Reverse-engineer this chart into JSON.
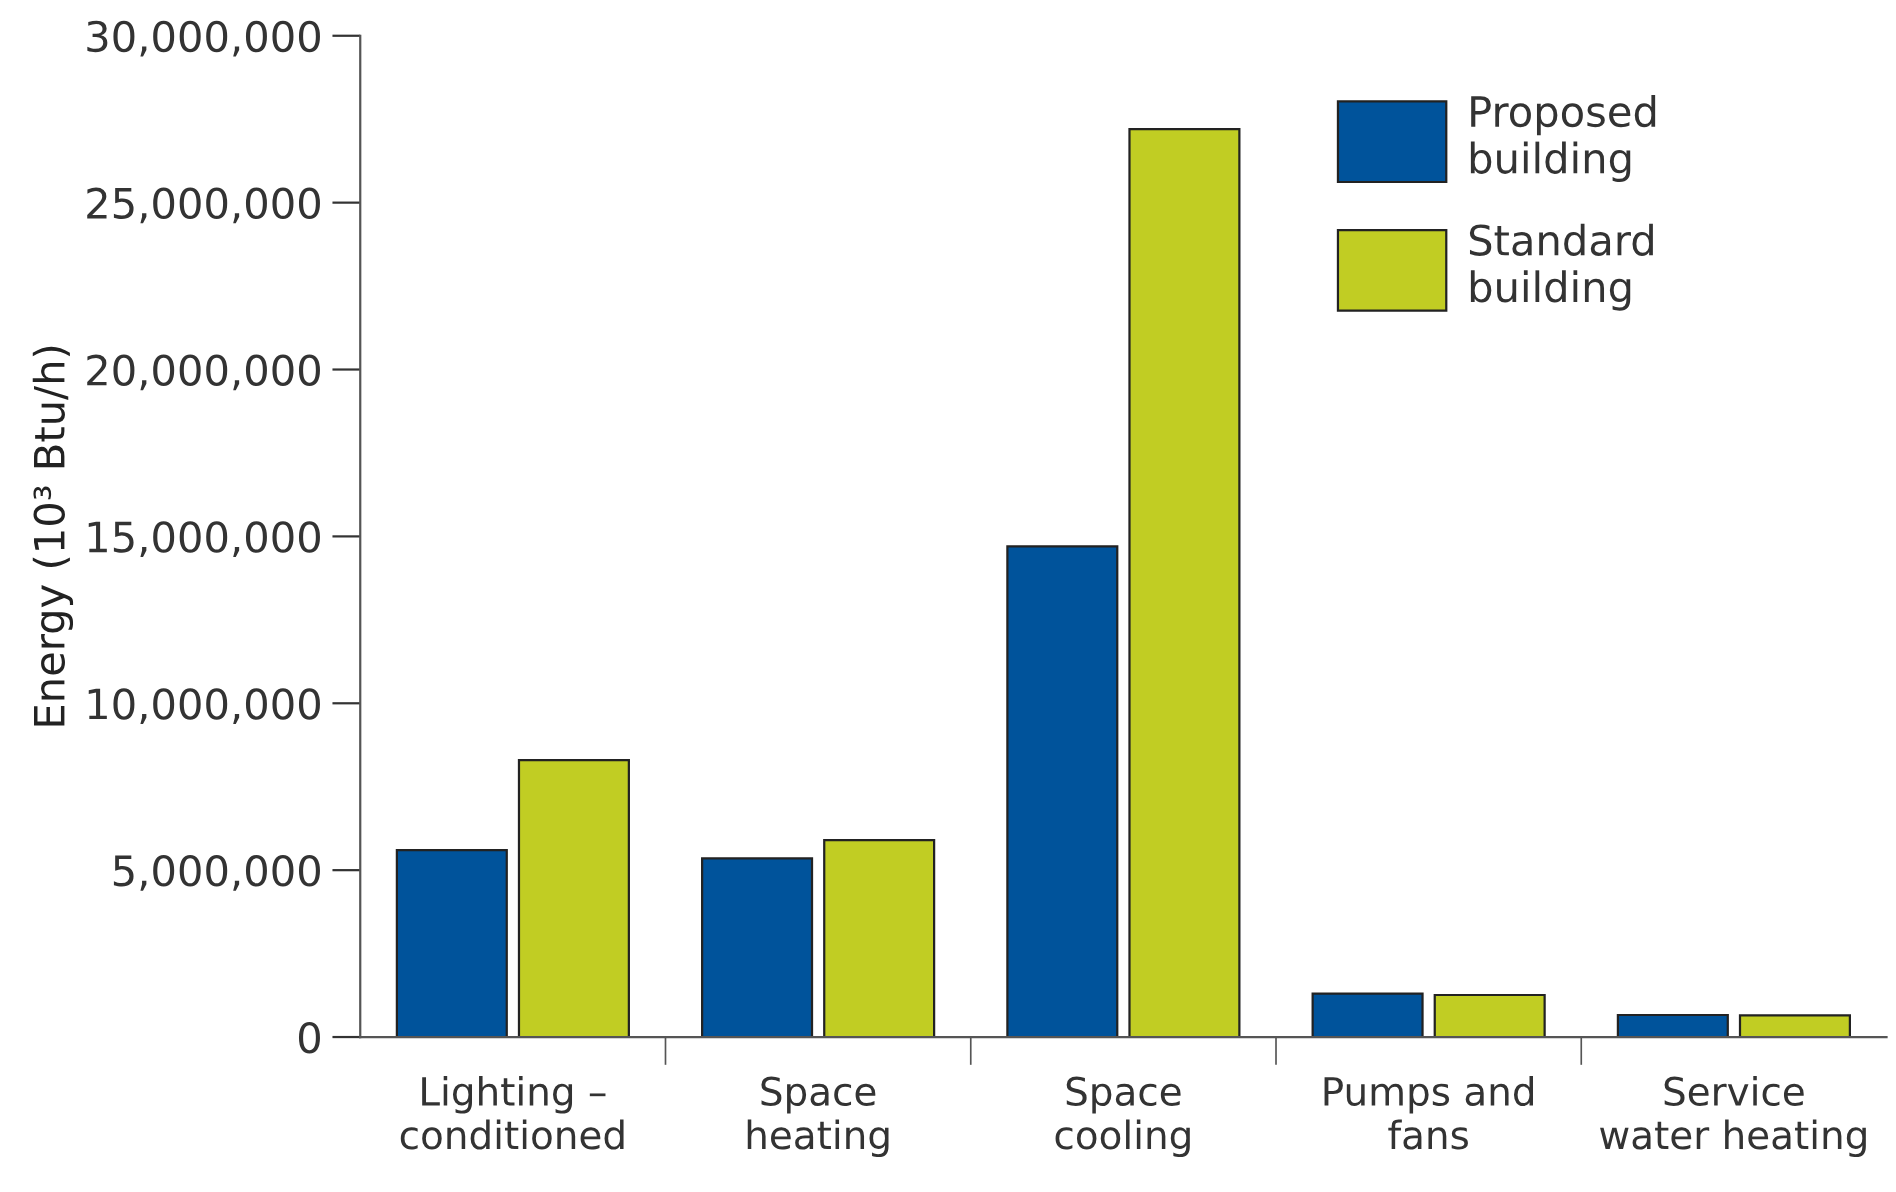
{
  "chart_data": {
    "type": "bar",
    "ylabel": "Energy (10³ Btu/h)",
    "categories": [
      "Lighting –\nconditioned",
      "Space\nheating",
      "Space\ncooling",
      "Pumps and\nfans",
      "Service\nwater heating"
    ],
    "series": [
      {
        "name": "Proposed\nbuilding",
        "color": "#00539b",
        "values": [
          5600000,
          5350000,
          14700000,
          1300000,
          660000
        ]
      },
      {
        "name": "Standard\nbuilding",
        "color": "#c1cd23",
        "values": [
          8300000,
          5900000,
          27200000,
          1260000,
          650000
        ]
      }
    ],
    "ylim": [
      0,
      30000000
    ],
    "yticks": [
      {
        "value": 0,
        "label": "0"
      },
      {
        "value": 5000000,
        "label": "5,000,000"
      },
      {
        "value": 10000000,
        "label": "10,000,000"
      },
      {
        "value": 15000000,
        "label": "15,000,000"
      },
      {
        "value": 20000000,
        "label": "20,000,000"
      },
      {
        "value": 25000000,
        "label": "25,000,000"
      },
      {
        "value": 30000000,
        "label": "30,000,000"
      }
    ],
    "grid": false,
    "legend": "top right"
  }
}
